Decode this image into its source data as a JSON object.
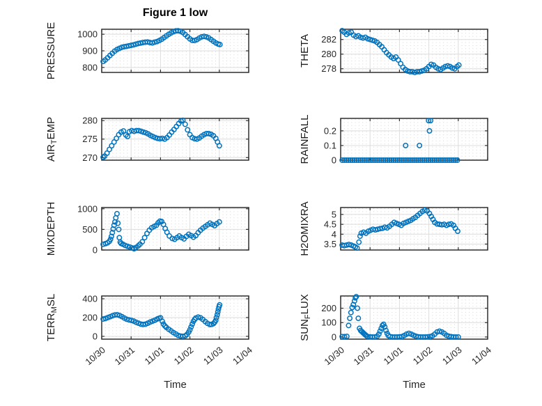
{
  "figure": {
    "title": "Figure 1 low",
    "xlabel": "Time"
  },
  "palette": {
    "marker": "#0072BD",
    "box": "#2e2e2e",
    "grid_major": "#dcdcdc",
    "grid_minor": "#d6d6d6",
    "tick_text": "#262626",
    "background": "#ffffff"
  },
  "x_axis": {
    "tick_labels": [
      "10/30",
      "10/31",
      "11/01",
      "11/02",
      "11/03",
      "11/04"
    ],
    "tick_days": [
      0,
      1,
      2,
      3,
      4,
      5
    ],
    "xlim_days": [
      0,
      5
    ],
    "minor_step_days": 0.125
  },
  "chart_data": [
    {
      "type": "scatter",
      "name": "PRESSURE",
      "row": 0,
      "col": 0,
      "ylabel_parts": [
        {
          "text": "PRESSURE"
        }
      ],
      "ylim": [
        770,
        1030
      ],
      "yticks": [
        800,
        900,
        1000
      ],
      "x": [
        0.05,
        0.12,
        0.2,
        0.28,
        0.36,
        0.44,
        0.52,
        0.6,
        0.68,
        0.76,
        0.84,
        0.92,
        1.0,
        1.08,
        1.16,
        1.24,
        1.32,
        1.4,
        1.48,
        1.56,
        1.64,
        1.72,
        1.8,
        1.88,
        1.96,
        2.04,
        2.12,
        2.2,
        2.28,
        2.36,
        2.44,
        2.52,
        2.6,
        2.68,
        2.76,
        2.84,
        2.92,
        3.0,
        3.08,
        3.16,
        3.24,
        3.32,
        3.4,
        3.48,
        3.56,
        3.64,
        3.72,
        3.8,
        3.88,
        3.96,
        4.02
      ],
      "y": [
        836,
        845,
        858,
        872,
        885,
        898,
        908,
        915,
        921,
        925,
        927,
        930,
        933,
        936,
        940,
        944,
        947,
        950,
        952,
        953,
        950,
        948,
        952,
        956,
        962,
        970,
        980,
        990,
        1000,
        1008,
        1015,
        1020,
        1021,
        1018,
        1010,
        998,
        985,
        972,
        963,
        962,
        968,
        977,
        984,
        987,
        984,
        978,
        968,
        958,
        948,
        941,
        938
      ]
    },
    {
      "type": "scatter",
      "name": "THETA",
      "row": 0,
      "col": 1,
      "ylabel_parts": [
        {
          "text": "THETA"
        }
      ],
      "ylim": [
        277.5,
        283.4
      ],
      "yticks": [
        278,
        280,
        282
      ],
      "x": [
        0.05,
        0.12,
        0.2,
        0.28,
        0.36,
        0.44,
        0.52,
        0.6,
        0.68,
        0.76,
        0.84,
        0.92,
        1.0,
        1.08,
        1.16,
        1.24,
        1.32,
        1.4,
        1.48,
        1.56,
        1.64,
        1.72,
        1.8,
        1.88,
        1.96,
        2.04,
        2.12,
        2.2,
        2.28,
        2.36,
        2.44,
        2.52,
        2.6,
        2.68,
        2.76,
        2.84,
        2.92,
        3.0,
        3.08,
        3.16,
        3.24,
        3.32,
        3.4,
        3.48,
        3.56,
        3.64,
        3.72,
        3.8,
        3.88,
        3.96,
        4.02
      ],
      "y": [
        283.2,
        283.0,
        282.7,
        282.9,
        283.0,
        282.6,
        282.4,
        282.5,
        282.3,
        282.2,
        282.3,
        282.1,
        282.0,
        281.9,
        281.8,
        281.6,
        281.3,
        281.0,
        280.6,
        280.2,
        279.9,
        279.6,
        279.4,
        279.6,
        279.2,
        278.7,
        278.2,
        277.9,
        277.7,
        277.6,
        277.6,
        277.5,
        277.6,
        277.6,
        277.7,
        277.8,
        278.0,
        278.3,
        278.6,
        278.5,
        278.2,
        278.0,
        277.9,
        278.1,
        278.3,
        278.4,
        278.3,
        278.1,
        278.0,
        278.3,
        278.5
      ]
    },
    {
      "type": "scatter",
      "name": "AIR_TEMP",
      "row": 1,
      "col": 0,
      "ylabel_parts": [
        {
          "text": "AIR"
        },
        {
          "text": "T",
          "sub": true
        },
        {
          "text": "EMP"
        }
      ],
      "ylim": [
        269.3,
        280.6
      ],
      "yticks": [
        270,
        275,
        280
      ],
      "x": [
        0.05,
        0.1,
        0.18,
        0.26,
        0.34,
        0.42,
        0.5,
        0.58,
        0.66,
        0.74,
        0.82,
        0.88,
        0.94,
        1.02,
        1.1,
        1.18,
        1.26,
        1.34,
        1.42,
        1.5,
        1.58,
        1.66,
        1.74,
        1.82,
        1.9,
        1.98,
        2.06,
        2.14,
        2.22,
        2.3,
        2.38,
        2.46,
        2.54,
        2.62,
        2.7,
        2.76,
        2.84,
        2.92,
        3.0,
        3.08,
        3.16,
        3.24,
        3.32,
        3.4,
        3.48,
        3.56,
        3.64,
        3.72,
        3.8,
        3.88,
        3.94,
        4.0
      ],
      "y": [
        270.1,
        270.4,
        271.2,
        272.2,
        273.2,
        274.2,
        275.2,
        276.2,
        276.9,
        277.2,
        276.1,
        275.7,
        277.0,
        277.3,
        277.1,
        277.3,
        277.3,
        277.1,
        276.9,
        276.7,
        276.4,
        276.0,
        275.7,
        275.4,
        275.2,
        275.1,
        275.2,
        275.0,
        275.4,
        276.1,
        276.9,
        277.6,
        278.4,
        279.2,
        279.9,
        280.1,
        279.0,
        277.5,
        276.2,
        275.4,
        275.1,
        275.0,
        275.3,
        275.8,
        276.2,
        276.5,
        276.5,
        276.3,
        275.9,
        275.2,
        274.2,
        273.2
      ]
    },
    {
      "type": "scatter",
      "name": "RAINFALL",
      "row": 1,
      "col": 1,
      "ylabel_parts": [
        {
          "text": "RAINFALL"
        }
      ],
      "ylim": [
        0,
        0.285
      ],
      "yticks": [
        0,
        0.1,
        0.2
      ],
      "x": [
        0.05,
        0.12,
        0.19,
        0.26,
        0.33,
        0.4,
        0.47,
        0.54,
        0.61,
        0.68,
        0.75,
        0.82,
        0.89,
        0.96,
        1.03,
        1.1,
        1.17,
        1.24,
        1.31,
        1.38,
        1.45,
        1.52,
        1.59,
        1.66,
        1.73,
        1.8,
        1.87,
        1.94,
        2.01,
        2.08,
        2.15,
        2.22,
        2.29,
        2.36,
        2.43,
        2.5,
        2.57,
        2.64,
        2.71,
        2.78,
        2.85,
        2.92,
        2.99,
        3.06,
        3.13,
        3.2,
        3.27,
        3.34,
        3.41,
        3.48,
        3.55,
        3.62,
        3.69,
        3.76,
        3.83,
        3.9,
        3.97,
        2.21,
        2.68,
        3.02,
        2.99,
        3.06
      ],
      "y": [
        0,
        0,
        0,
        0,
        0,
        0,
        0,
        0,
        0,
        0,
        0,
        0,
        0,
        0,
        0,
        0,
        0,
        0,
        0,
        0,
        0,
        0,
        0,
        0,
        0,
        0,
        0,
        0,
        0,
        0,
        0,
        0,
        0,
        0,
        0,
        0,
        0,
        0,
        0,
        0,
        0,
        0,
        0,
        0,
        0,
        0,
        0,
        0,
        0,
        0,
        0,
        0,
        0,
        0,
        0,
        0,
        0,
        0.1,
        0.1,
        0.2,
        0.27,
        0.27
      ]
    },
    {
      "type": "scatter",
      "name": "MIXDEPTH",
      "row": 2,
      "col": 0,
      "ylabel_parts": [
        {
          "text": "MIXDEPTH"
        }
      ],
      "ylim": [
        0,
        1030
      ],
      "yticks": [
        0,
        500,
        1000
      ],
      "x": [
        0.05,
        0.13,
        0.2,
        0.26,
        0.3,
        0.33,
        0.36,
        0.39,
        0.42,
        0.45,
        0.48,
        0.52,
        0.55,
        0.58,
        0.6,
        0.63,
        0.66,
        0.72,
        0.8,
        0.88,
        0.96,
        1.04,
        1.1,
        1.16,
        1.24,
        1.3,
        1.38,
        1.46,
        1.54,
        1.62,
        1.7,
        1.78,
        1.86,
        1.92,
        1.98,
        2.04,
        2.1,
        2.16,
        2.22,
        2.3,
        2.4,
        2.48,
        2.56,
        2.64,
        2.72,
        2.8,
        2.88,
        2.96,
        3.04,
        3.12,
        3.2,
        3.28,
        3.36,
        3.44,
        3.52,
        3.6,
        3.68,
        3.76,
        3.84,
        3.92,
        4.0
      ],
      "y": [
        140,
        155,
        175,
        210,
        260,
        330,
        420,
        510,
        600,
        680,
        780,
        880,
        650,
        500,
        300,
        190,
        160,
        140,
        110,
        90,
        70,
        50,
        30,
        60,
        100,
        140,
        200,
        300,
        400,
        480,
        540,
        570,
        600,
        660,
        700,
        690,
        620,
        520,
        430,
        340,
        280,
        260,
        300,
        340,
        300,
        270,
        330,
        380,
        350,
        310,
        350,
        420,
        480,
        530,
        570,
        610,
        650,
        620,
        590,
        640,
        680
      ]
    },
    {
      "type": "scatter",
      "name": "H2OMIXRA",
      "row": 2,
      "col": 1,
      "ylabel_parts": [
        {
          "text": "H2OMIXRA"
        }
      ],
      "ylim": [
        3.2,
        5.35
      ],
      "yticks": [
        3.5,
        4,
        4.5,
        5
      ],
      "x": [
        0.05,
        0.12,
        0.2,
        0.28,
        0.36,
        0.44,
        0.5,
        0.56,
        0.62,
        0.66,
        0.7,
        0.78,
        0.86,
        0.94,
        1.02,
        1.1,
        1.18,
        1.26,
        1.34,
        1.42,
        1.5,
        1.58,
        1.66,
        1.74,
        1.82,
        1.9,
        1.98,
        2.06,
        2.14,
        2.22,
        2.3,
        2.38,
        2.46,
        2.54,
        2.62,
        2.7,
        2.78,
        2.86,
        2.94,
        3.02,
        3.08,
        3.14,
        3.2,
        3.28,
        3.36,
        3.44,
        3.52,
        3.6,
        3.68,
        3.76,
        3.84,
        3.9,
        3.98
      ],
      "y": [
        3.45,
        3.42,
        3.45,
        3.48,
        3.45,
        3.4,
        3.35,
        3.3,
        3.6,
        3.9,
        4.05,
        4.1,
        4.05,
        4.15,
        4.2,
        4.25,
        4.22,
        4.25,
        4.28,
        4.3,
        4.35,
        4.32,
        4.4,
        4.5,
        4.6,
        4.55,
        4.5,
        4.45,
        4.55,
        4.6,
        4.65,
        4.7,
        4.78,
        4.85,
        4.95,
        5.05,
        5.15,
        5.22,
        5.18,
        5.05,
        4.9,
        4.75,
        4.6,
        4.52,
        4.5,
        4.48,
        4.5,
        4.45,
        4.5,
        4.52,
        4.45,
        4.3,
        4.15
      ]
    },
    {
      "type": "scatter",
      "name": "TERR_MSL",
      "row": 3,
      "col": 0,
      "ylabel_parts": [
        {
          "text": "TERR"
        },
        {
          "text": "M",
          "sub": true
        },
        {
          "text": "SL"
        }
      ],
      "ylim": [
        -30,
        430
      ],
      "yticks": [
        0,
        200,
        400
      ],
      "x": [
        0.05,
        0.13,
        0.21,
        0.29,
        0.37,
        0.45,
        0.53,
        0.61,
        0.69,
        0.77,
        0.85,
        0.93,
        1.01,
        1.09,
        1.17,
        1.25,
        1.33,
        1.41,
        1.49,
        1.57,
        1.65,
        1.73,
        1.81,
        1.89,
        1.95,
        2.0,
        2.06,
        2.1,
        2.15,
        2.2,
        2.28,
        2.36,
        2.44,
        2.52,
        2.6,
        2.68,
        2.76,
        2.84,
        2.9,
        2.96,
        3.0,
        3.04,
        3.08,
        3.12,
        3.16,
        3.2,
        3.28,
        3.36,
        3.44,
        3.52,
        3.6,
        3.68,
        3.74,
        3.8,
        3.84,
        3.88,
        3.9,
        3.93,
        3.95,
        3.97,
        3.99,
        4.01
      ],
      "y": [
        185,
        190,
        200,
        210,
        220,
        228,
        230,
        222,
        210,
        195,
        182,
        175,
        170,
        162,
        150,
        140,
        130,
        126,
        130,
        140,
        152,
        162,
        172,
        185,
        192,
        198,
        160,
        130,
        110,
        95,
        75,
        58,
        40,
        25,
        10,
        3,
        0,
        5,
        20,
        45,
        70,
        100,
        130,
        160,
        180,
        195,
        205,
        198,
        180,
        158,
        138,
        125,
        128,
        135,
        150,
        170,
        200,
        230,
        260,
        290,
        315,
        335
      ]
    },
    {
      "type": "scatter",
      "name": "SUN_FLUX",
      "row": 3,
      "col": 1,
      "ylabel_parts": [
        {
          "text": "SUN"
        },
        {
          "text": "F",
          "sub": true
        },
        {
          "text": "LUX"
        }
      ],
      "ylim": [
        -15,
        285
      ],
      "yticks": [
        0,
        100,
        200
      ],
      "x": [
        0.05,
        0.13,
        0.21,
        0.27,
        0.31,
        0.35,
        0.39,
        0.43,
        0.47,
        0.5,
        0.53,
        0.57,
        0.6,
        0.64,
        0.68,
        0.72,
        0.76,
        0.8,
        0.84,
        0.88,
        0.92,
        1.0,
        1.08,
        1.16,
        1.24,
        1.3,
        1.34,
        1.38,
        1.42,
        1.46,
        1.5,
        1.54,
        1.58,
        1.62,
        1.68,
        1.76,
        1.84,
        1.92,
        2.0,
        2.08,
        2.16,
        2.24,
        2.32,
        2.4,
        2.48,
        2.56,
        2.64,
        2.72,
        2.8,
        2.88,
        2.96,
        3.04,
        3.12,
        3.2,
        3.28,
        3.36,
        3.44,
        3.52,
        3.6,
        3.68,
        3.76,
        3.84,
        3.92,
        4.0
      ],
      "y": [
        3,
        2,
        4,
        80,
        130,
        170,
        205,
        225,
        250,
        272,
        280,
        200,
        130,
        60,
        45,
        38,
        30,
        22,
        15,
        8,
        3,
        1,
        0,
        0,
        5,
        20,
        40,
        60,
        80,
        88,
        70,
        45,
        25,
        10,
        3,
        0,
        0,
        0,
        1,
        3,
        10,
        20,
        25,
        20,
        12,
        5,
        1,
        0,
        0,
        0,
        1,
        3,
        8,
        20,
        35,
        40,
        35,
        25,
        12,
        5,
        2,
        0,
        0,
        0
      ]
    }
  ]
}
